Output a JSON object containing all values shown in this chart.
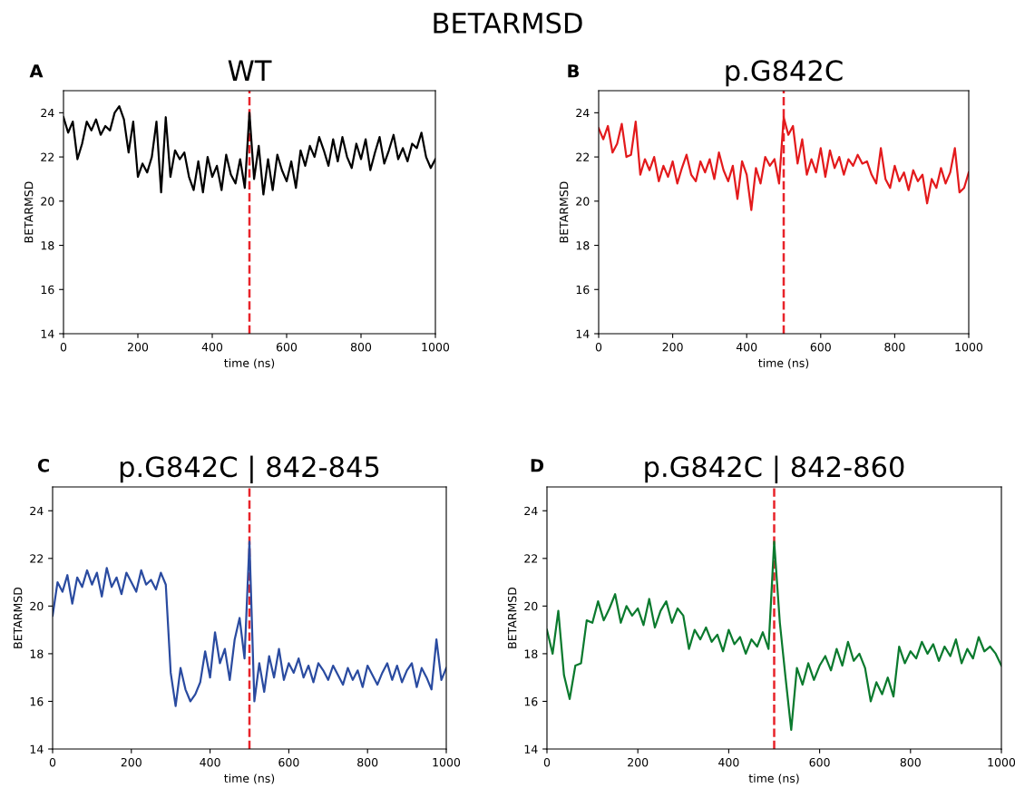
{
  "chart_data": [
    {
      "type": "line",
      "x": [
        0,
        12.5,
        25,
        37.5,
        50,
        62.5,
        75,
        87.5,
        100,
        112.5,
        125,
        137.5,
        150,
        162.5,
        175,
        187.5,
        200,
        212.5,
        225,
        237.5,
        250,
        262.5,
        275,
        287.5,
        300,
        312.5,
        325,
        337.5,
        350,
        362.5,
        375,
        387.5,
        400,
        412.5,
        425,
        437.5,
        450,
        462.5,
        475,
        487.5,
        500,
        512.5,
        525,
        537.5,
        550,
        562.5,
        575,
        587.5,
        600,
        612.5,
        625,
        637.5,
        650,
        662.5,
        675,
        687.5,
        700,
        712.5,
        725,
        737.5,
        750,
        762.5,
        775,
        787.5,
        800,
        812.5,
        825,
        837.5,
        850,
        862.5,
        875,
        887.5,
        900,
        912.5,
        925,
        937.5,
        950,
        962.5,
        975,
        987.5,
        1000
      ],
      "title": "WT",
      "xlabel": "time (ns)",
      "ylabel": "BETARMSD",
      "annotations": [
        "BETARMSD",
        "A"
      ],
      "xlim": [
        0,
        1000
      ],
      "xticks": [
        0,
        200,
        400,
        600,
        800,
        1000
      ],
      "ylim": [
        14,
        25
      ],
      "yticks": [
        14,
        16,
        18,
        20,
        22,
        24
      ],
      "grid": false,
      "ref_lines": [
        {
          "axis": "x",
          "value": 500,
          "color": "#e8232a",
          "line_style": "dashed"
        }
      ],
      "series": [
        {
          "color": "#000000",
          "values": [
            23.8,
            23.1,
            23.6,
            21.9,
            22.6,
            23.6,
            23.2,
            23.7,
            23.0,
            23.4,
            23.2,
            24.0,
            24.3,
            23.7,
            22.2,
            23.6,
            21.1,
            21.7,
            21.3,
            22.0,
            23.6,
            20.4,
            23.8,
            21.1,
            22.3,
            21.9,
            22.2,
            21.1,
            20.5,
            21.8,
            20.4,
            22.0,
            21.1,
            21.6,
            20.5,
            22.1,
            21.2,
            20.8,
            21.9,
            20.6,
            24.0,
            21.0,
            22.5,
            20.3,
            21.9,
            20.5,
            22.1,
            21.4,
            20.9,
            21.8,
            20.6,
            22.3,
            21.6,
            22.5,
            22.0,
            22.9,
            22.3,
            21.6,
            22.8,
            21.8,
            22.9,
            22.0,
            21.5,
            22.6,
            21.9,
            22.8,
            21.4,
            22.2,
            22.9,
            21.7,
            22.3,
            23.0,
            21.9,
            22.4,
            21.8,
            22.6,
            22.4,
            23.1,
            22.0,
            21.5,
            21.9
          ]
        }
      ]
    },
    {
      "type": "line",
      "x": [
        0,
        12.5,
        25,
        37.5,
        50,
        62.5,
        75,
        87.5,
        100,
        112.5,
        125,
        137.5,
        150,
        162.5,
        175,
        187.5,
        200,
        212.5,
        225,
        237.5,
        250,
        262.5,
        275,
        287.5,
        300,
        312.5,
        325,
        337.5,
        350,
        362.5,
        375,
        387.5,
        400,
        412.5,
        425,
        437.5,
        450,
        462.5,
        475,
        487.5,
        500,
        512.5,
        525,
        537.5,
        550,
        562.5,
        575,
        587.5,
        600,
        612.5,
        625,
        637.5,
        650,
        662.5,
        675,
        687.5,
        700,
        712.5,
        725,
        737.5,
        750,
        762.5,
        775,
        787.5,
        800,
        812.5,
        825,
        837.5,
        850,
        862.5,
        875,
        887.5,
        900,
        912.5,
        925,
        937.5,
        950,
        962.5,
        975,
        987.5,
        1000
      ],
      "title": "p.G842C",
      "xlabel": "time (ns)",
      "ylabel": "BETARMSD",
      "annotations": [
        "B"
      ],
      "xlim": [
        0,
        1000
      ],
      "xticks": [
        0,
        200,
        400,
        600,
        800,
        1000
      ],
      "ylim": [
        14,
        25
      ],
      "yticks": [
        14,
        16,
        18,
        20,
        22,
        24
      ],
      "grid": false,
      "ref_lines": [
        {
          "axis": "x",
          "value": 500,
          "color": "#e8232a",
          "line_style": "dashed"
        }
      ],
      "series": [
        {
          "color": "#e31a1c",
          "values": [
            23.3,
            22.8,
            23.4,
            22.2,
            22.6,
            23.5,
            22.0,
            22.1,
            23.6,
            21.2,
            21.9,
            21.4,
            22.0,
            20.9,
            21.6,
            21.1,
            21.8,
            20.8,
            21.5,
            22.1,
            21.2,
            20.9,
            21.8,
            21.3,
            21.9,
            21.0,
            22.2,
            21.4,
            20.9,
            21.6,
            20.1,
            21.8,
            21.2,
            19.6,
            21.5,
            20.8,
            22.0,
            21.6,
            21.9,
            20.8,
            23.8,
            23.0,
            23.4,
            21.7,
            22.8,
            21.2,
            21.9,
            21.3,
            22.4,
            21.1,
            22.3,
            21.5,
            22.0,
            21.2,
            21.9,
            21.6,
            22.1,
            21.7,
            21.8,
            21.2,
            20.8,
            22.4,
            21.0,
            20.6,
            21.6,
            20.9,
            21.3,
            20.5,
            21.4,
            20.9,
            21.2,
            19.9,
            21.0,
            20.6,
            21.5,
            20.8,
            21.3,
            22.4,
            20.4,
            20.6,
            21.3
          ]
        }
      ]
    },
    {
      "type": "line",
      "x": [
        0,
        12.5,
        25,
        37.5,
        50,
        62.5,
        75,
        87.5,
        100,
        112.5,
        125,
        137.5,
        150,
        162.5,
        175,
        187.5,
        200,
        212.5,
        225,
        237.5,
        250,
        262.5,
        275,
        287.5,
        300,
        312.5,
        325,
        337.5,
        350,
        362.5,
        375,
        387.5,
        400,
        412.5,
        425,
        437.5,
        450,
        462.5,
        475,
        487.5,
        500,
        512.5,
        525,
        537.5,
        550,
        562.5,
        575,
        587.5,
        600,
        612.5,
        625,
        637.5,
        650,
        662.5,
        675,
        687.5,
        700,
        712.5,
        725,
        737.5,
        750,
        762.5,
        775,
        787.5,
        800,
        812.5,
        825,
        837.5,
        850,
        862.5,
        875,
        887.5,
        900,
        912.5,
        925,
        937.5,
        950,
        962.5,
        975,
        987.5,
        1000
      ],
      "title": "p.G842C | 842-845",
      "xlabel": "time (ns)",
      "ylabel": "BETARMSD",
      "annotations": [
        "C"
      ],
      "xlim": [
        0,
        1000
      ],
      "xticks": [
        0,
        200,
        400,
        600,
        800,
        1000
      ],
      "ylim": [
        14,
        25
      ],
      "yticks": [
        14,
        16,
        18,
        20,
        22,
        24
      ],
      "grid": false,
      "ref_lines": [
        {
          "axis": "x",
          "value": 500,
          "color": "#e8232a",
          "line_style": "dashed"
        }
      ],
      "series": [
        {
          "color": "#2a4ba0",
          "values": [
            19.6,
            21.0,
            20.6,
            21.3,
            20.1,
            21.2,
            20.8,
            21.5,
            20.9,
            21.4,
            20.4,
            21.6,
            20.8,
            21.2,
            20.5,
            21.4,
            21.0,
            20.6,
            21.5,
            20.9,
            21.1,
            20.7,
            21.4,
            20.9,
            17.2,
            15.8,
            17.4,
            16.5,
            16.0,
            16.3,
            16.8,
            18.1,
            17.0,
            18.9,
            17.6,
            18.2,
            16.9,
            18.6,
            19.5,
            17.8,
            22.7,
            16.0,
            17.6,
            16.4,
            17.9,
            17.0,
            18.2,
            16.9,
            17.6,
            17.2,
            17.8,
            17.0,
            17.5,
            16.8,
            17.6,
            17.3,
            16.9,
            17.5,
            17.1,
            16.7,
            17.4,
            16.9,
            17.3,
            16.6,
            17.5,
            17.1,
            16.7,
            17.2,
            17.6,
            16.9,
            17.5,
            16.8,
            17.3,
            17.6,
            16.6,
            17.4,
            17.0,
            16.5,
            18.6,
            16.9,
            17.4
          ]
        }
      ]
    },
    {
      "type": "line",
      "x": [
        0,
        12.5,
        25,
        37.5,
        50,
        62.5,
        75,
        87.5,
        100,
        112.5,
        125,
        137.5,
        150,
        162.5,
        175,
        187.5,
        200,
        212.5,
        225,
        237.5,
        250,
        262.5,
        275,
        287.5,
        300,
        312.5,
        325,
        337.5,
        350,
        362.5,
        375,
        387.5,
        400,
        412.5,
        425,
        437.5,
        450,
        462.5,
        475,
        487.5,
        500,
        512.5,
        525,
        537.5,
        550,
        562.5,
        575,
        587.5,
        600,
        612.5,
        625,
        637.5,
        650,
        662.5,
        675,
        687.5,
        700,
        712.5,
        725,
        737.5,
        750,
        762.5,
        775,
        787.5,
        800,
        812.5,
        825,
        837.5,
        850,
        862.5,
        875,
        887.5,
        900,
        912.5,
        925,
        937.5,
        950,
        962.5,
        975,
        987.5,
        1000
      ],
      "title": "p.G842C | 842-860",
      "xlabel": "time (ns)",
      "ylabel": "BETARMSD",
      "annotations": [
        "D"
      ],
      "xlim": [
        0,
        1000
      ],
      "xticks": [
        0,
        200,
        400,
        600,
        800,
        1000
      ],
      "ylim": [
        14,
        25
      ],
      "yticks": [
        14,
        16,
        18,
        20,
        22,
        24
      ],
      "grid": false,
      "ref_lines": [
        {
          "axis": "x",
          "value": 500,
          "color": "#e8232a",
          "line_style": "dashed"
        }
      ],
      "series": [
        {
          "color": "#0b7a2e",
          "values": [
            19.0,
            18.0,
            19.8,
            17.1,
            16.1,
            17.5,
            17.6,
            19.4,
            19.3,
            20.2,
            19.4,
            19.9,
            20.5,
            19.3,
            20.0,
            19.6,
            19.9,
            19.2,
            20.3,
            19.1,
            19.8,
            20.2,
            19.3,
            19.9,
            19.6,
            18.2,
            19.0,
            18.6,
            19.1,
            18.5,
            18.8,
            18.1,
            19.0,
            18.4,
            18.7,
            18.0,
            18.6,
            18.3,
            18.9,
            18.2,
            22.7,
            19.3,
            17.0,
            14.8,
            17.4,
            16.7,
            17.6,
            16.9,
            17.5,
            17.9,
            17.3,
            18.2,
            17.5,
            18.5,
            17.7,
            18.0,
            17.4,
            16.0,
            16.8,
            16.3,
            17.0,
            16.2,
            18.3,
            17.6,
            18.1,
            17.8,
            18.5,
            18.0,
            18.4,
            17.7,
            18.3,
            17.9,
            18.6,
            17.6,
            18.2,
            17.8,
            18.7,
            18.1,
            18.3,
            18.0,
            17.5
          ]
        }
      ]
    }
  ]
}
